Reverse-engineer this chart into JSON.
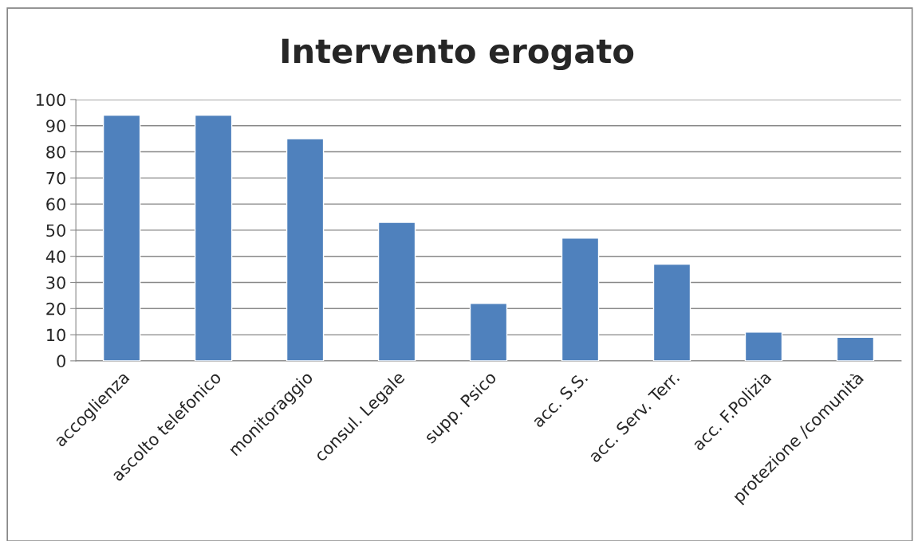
{
  "chart_data": {
    "type": "bar",
    "title": "Intervento erogato",
    "categories": [
      "accoglienza",
      "ascolto telefonico",
      "monitoraggio",
      "consul. Legale",
      "supp. Psico",
      "acc. S.S.",
      "acc. Serv. Terr.",
      "acc. F.Polizia",
      "protezione /comunità"
    ],
    "values": [
      94,
      94,
      85,
      53,
      22,
      47,
      37,
      11,
      9
    ],
    "color": "#4f81bd",
    "ylim": [
      0,
      100
    ],
    "yticks": [
      0,
      10,
      20,
      30,
      40,
      50,
      60,
      70,
      80,
      90,
      100
    ],
    "grid": "y"
  }
}
